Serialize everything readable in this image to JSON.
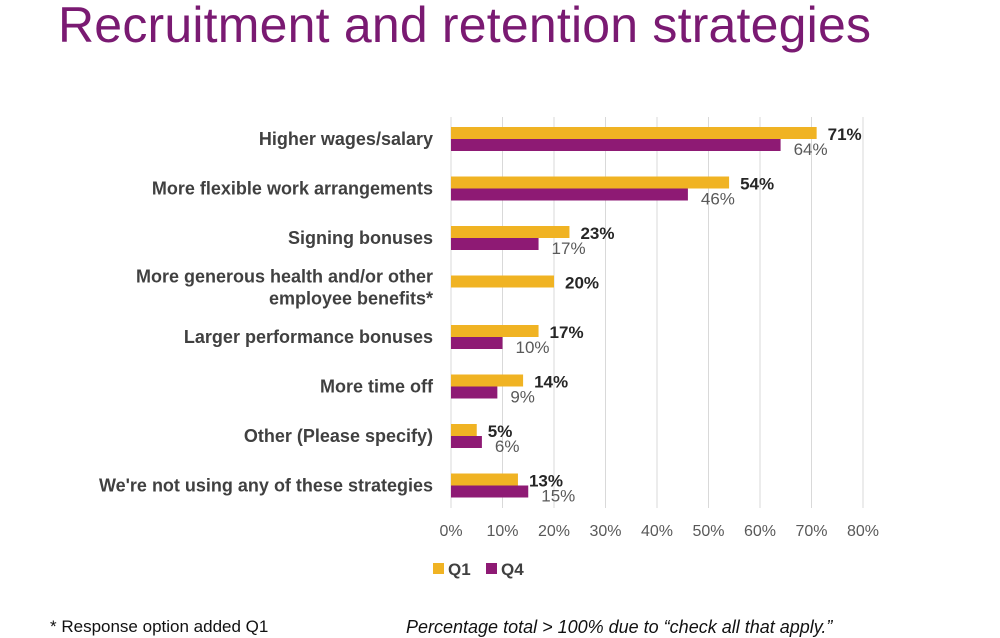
{
  "title": "Recruitment and retention strategies",
  "footnotes": {
    "left": "* Response option added Q1",
    "right": "Percentage total > 100% due to “check all that apply.”"
  },
  "chart_data": {
    "type": "bar",
    "orientation": "horizontal",
    "categories": [
      [
        "Higher wages/salary"
      ],
      [
        "More flexible work arrangements"
      ],
      [
        "Signing bonuses"
      ],
      [
        "More generous health and/or other",
        "employee benefits*"
      ],
      [
        "Larger performance bonuses"
      ],
      [
        "More time off"
      ],
      [
        "Other (Please specify)"
      ],
      [
        "We're not using any of these strategies"
      ]
    ],
    "series": [
      {
        "name": "Q1",
        "color": "#f0b323",
        "values": [
          71,
          54,
          23,
          20,
          17,
          14,
          5,
          13
        ],
        "labels": [
          "71%",
          "54%",
          "23%",
          "20%",
          "17%",
          "14%",
          "5%",
          "13%"
        ]
      },
      {
        "name": "Q4",
        "color": "#8e1a74",
        "values": [
          64,
          46,
          17,
          null,
          10,
          9,
          6,
          15
        ],
        "labels": [
          "64%",
          "46%",
          "17%",
          null,
          "10%",
          "9%",
          "6%",
          "15%"
        ]
      }
    ],
    "xlim": [
      0,
      80
    ],
    "xticks": [
      "0%",
      "10%",
      "20%",
      "30%",
      "40%",
      "50%",
      "60%",
      "70%",
      "80%"
    ],
    "grid": true,
    "legend": "bottom"
  }
}
